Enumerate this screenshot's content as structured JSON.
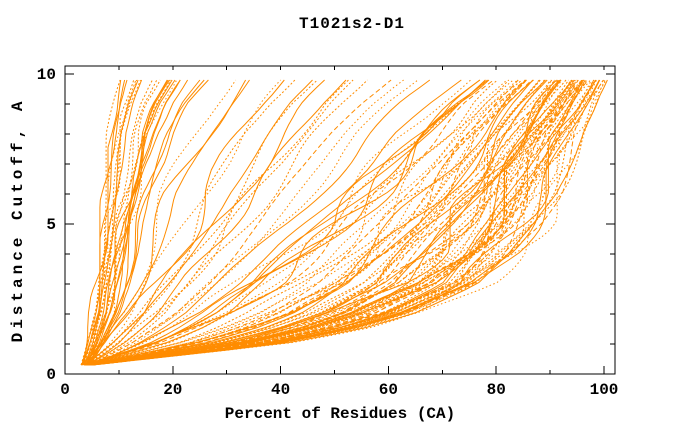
{
  "figure": {
    "background": "#ffffff",
    "frame_color": "#000000",
    "curve_color": "#ff8c00"
  },
  "chart_data": {
    "type": "line",
    "title": "T1021s2-D1",
    "xlabel": "Percent of Residues (CA)",
    "ylabel": "Distance Cutoff, A",
    "xlim": [
      0,
      102
    ],
    "ylim": [
      0,
      10.27
    ],
    "grid": false,
    "legend": "none",
    "x_ticks_major": [
      0,
      20,
      40,
      60,
      80,
      100
    ],
    "x_ticks_minor": [
      10,
      30,
      50,
      70,
      90
    ],
    "y_ticks_major": [
      0,
      5,
      10
    ],
    "y_ticks_minor": [
      1,
      2,
      3,
      4,
      6,
      7,
      8,
      9
    ],
    "series_color": "#ff8c00",
    "description": "Approximately 129 overlapping per-model GDT curves: percent of CA residues (x) fitting under each distance cutoff in Angstroms (y). All curves emanate from about (3%, 0.3 A) and rise monotonically to about 9.8 A.",
    "best_model_envelope": {
      "y": [
        0.3,
        0.5,
        1.0,
        1.5,
        2.0,
        3.0,
        4.0,
        5.0,
        6.0,
        7.0,
        8.0,
        9.0,
        9.8
      ],
      "x": [
        5,
        20,
        40,
        55,
        65,
        78,
        84,
        88,
        91,
        93,
        95,
        98,
        100
      ]
    },
    "worst_model_envelope": {
      "y": [
        0.3,
        0.5,
        1.0,
        1.5,
        2.0,
        3.0,
        4.0,
        5.0,
        6.0,
        7.0,
        8.0,
        9.0,
        9.8
      ],
      "x": [
        3,
        3.5,
        4,
        4.5,
        5,
        5.5,
        6,
        6.5,
        7,
        7.5,
        8,
        9,
        10
      ]
    },
    "y_anchors": [
      0.3,
      0.6,
      1.0,
      1.5,
      2.0,
      3.0,
      4.0,
      5.0,
      6.0,
      7.0,
      8.0,
      9.0,
      9.8
    ],
    "curve_groups": [
      {
        "name": "poor-models-steep-left",
        "count": 26,
        "x_lo": [
          3,
          3.5,
          4,
          4.5,
          5,
          5.5,
          6,
          6.5,
          7,
          7.5,
          8,
          9,
          10
        ],
        "x_hi": [
          4.5,
          6,
          7.5,
          9,
          10.5,
          12,
          13.5,
          15,
          17,
          19,
          21,
          24,
          28
        ],
        "bias": 1.3,
        "wobble": 1.0,
        "solid_prob": 0.6
      },
      {
        "name": "mid-quality-diagonal",
        "count": 18,
        "x_lo": [
          3,
          4.5,
          6,
          7.5,
          9,
          11,
          13,
          15,
          17,
          20,
          23,
          26,
          29
        ],
        "x_hi": [
          5,
          9,
          14,
          19,
          24,
          32,
          39,
          45,
          51,
          57,
          62,
          68,
          74
        ],
        "bias": 1.0,
        "wobble": 2.0,
        "solid_prob": 0.5
      },
      {
        "name": "good-models-right-bundle",
        "count": 85,
        "x_lo": [
          3.5,
          7,
          12,
          17,
          22,
          30,
          37,
          44,
          50,
          56,
          62,
          68,
          74
        ],
        "x_hi": [
          5,
          20,
          40,
          55,
          65,
          78,
          84,
          88,
          91,
          93,
          95,
          98,
          100.5
        ],
        "bias": 0.55,
        "wobble": 2.6,
        "solid_prob": 0.35
      }
    ],
    "seed": 7
  }
}
